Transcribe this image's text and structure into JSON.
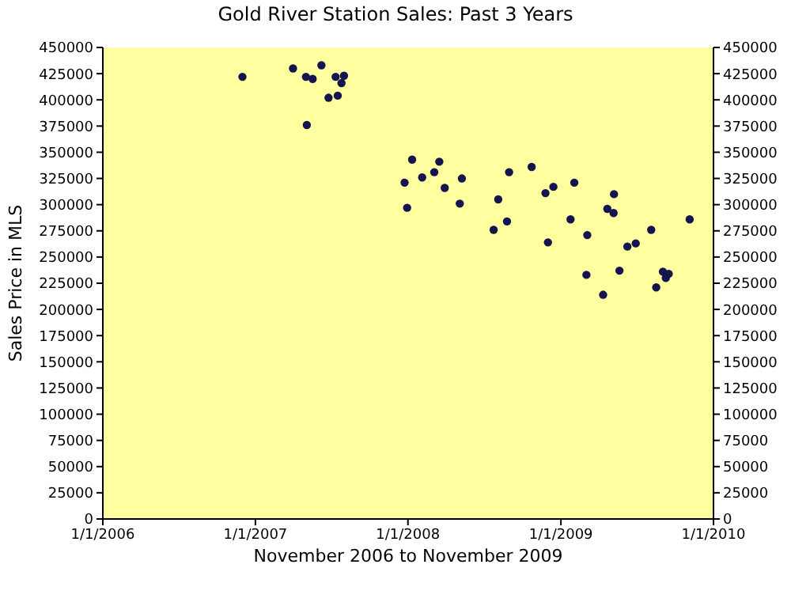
{
  "chart_data": {
    "type": "scatter",
    "title": "Gold River Station Sales: Past 3 Years",
    "xlabel": "November 2006 to November 2009",
    "ylabel": "Sales Price in MLS",
    "x": [
      "2006-12-01",
      "2007-04-01",
      "2007-05-02",
      "2007-05-18",
      "2007-06-08",
      "2007-07-12",
      "2007-08-01",
      "2007-07-26",
      "2007-06-25",
      "2007-07-17",
      "2007-05-04",
      "2008-01-11",
      "2008-03-16",
      "2008-03-04",
      "2008-02-04",
      "2007-12-24",
      "2008-05-09",
      "2008-03-29",
      "2007-12-30",
      "2008-05-04",
      "2008-08-30",
      "2008-10-23",
      "2008-08-04",
      "2008-07-24",
      "2008-08-25",
      "2008-11-25",
      "2008-12-14",
      "2009-02-02",
      "2009-01-24",
      "2008-12-01",
      "2009-05-08",
      "2009-04-22",
      "2009-05-07",
      "2009-11-05",
      "2009-03-05",
      "2009-08-05",
      "2009-06-09",
      "2009-06-29",
      "2009-03-03",
      "2009-05-21",
      "2009-04-12",
      "2009-08-17",
      "2009-09-02",
      "2009-09-16",
      "2009-09-09"
    ],
    "series": [
      {
        "color": "#14144f",
        "values": [
          422000,
          430000,
          422000,
          420000,
          433000,
          422000,
          423000,
          416000,
          402000,
          404000,
          376000,
          343000,
          341000,
          331000,
          326000,
          321000,
          325000,
          316000,
          297000,
          301000,
          331000,
          336000,
          305000,
          276000,
          284000,
          311000,
          317000,
          321000,
          286000,
          264000,
          310000,
          296000,
          292000,
          286000,
          271000,
          276000,
          260000,
          263000,
          233000,
          237000,
          214000,
          221000,
          236000,
          234000,
          230000
        ]
      }
    ],
    "marker": "circle",
    "xlim": [
      "2006-01-01",
      "2010-01-01"
    ],
    "xticks": [
      {
        "value": "2006-01-01",
        "label": "1/1/2006"
      },
      {
        "value": "2007-01-01",
        "label": "1/1/2007"
      },
      {
        "value": "2008-01-01",
        "label": "1/1/2008"
      },
      {
        "value": "2009-01-01",
        "label": "1/1/2009"
      },
      {
        "value": "2010-01-01",
        "label": "1/1/2010"
      }
    ],
    "ylim": [
      0,
      450000
    ],
    "yticks": [
      0,
      25000,
      50000,
      75000,
      100000,
      125000,
      150000,
      175000,
      200000,
      225000,
      250000,
      275000,
      300000,
      325000,
      350000,
      375000,
      400000,
      425000,
      450000
    ],
    "y2lim": [
      0,
      450000
    ],
    "y2ticks": [
      0,
      25000,
      50000,
      75000,
      100000,
      125000,
      150000,
      175000,
      200000,
      225000,
      250000,
      275000,
      300000,
      325000,
      350000,
      375000,
      400000,
      425000,
      450000
    ],
    "grid": false
  }
}
